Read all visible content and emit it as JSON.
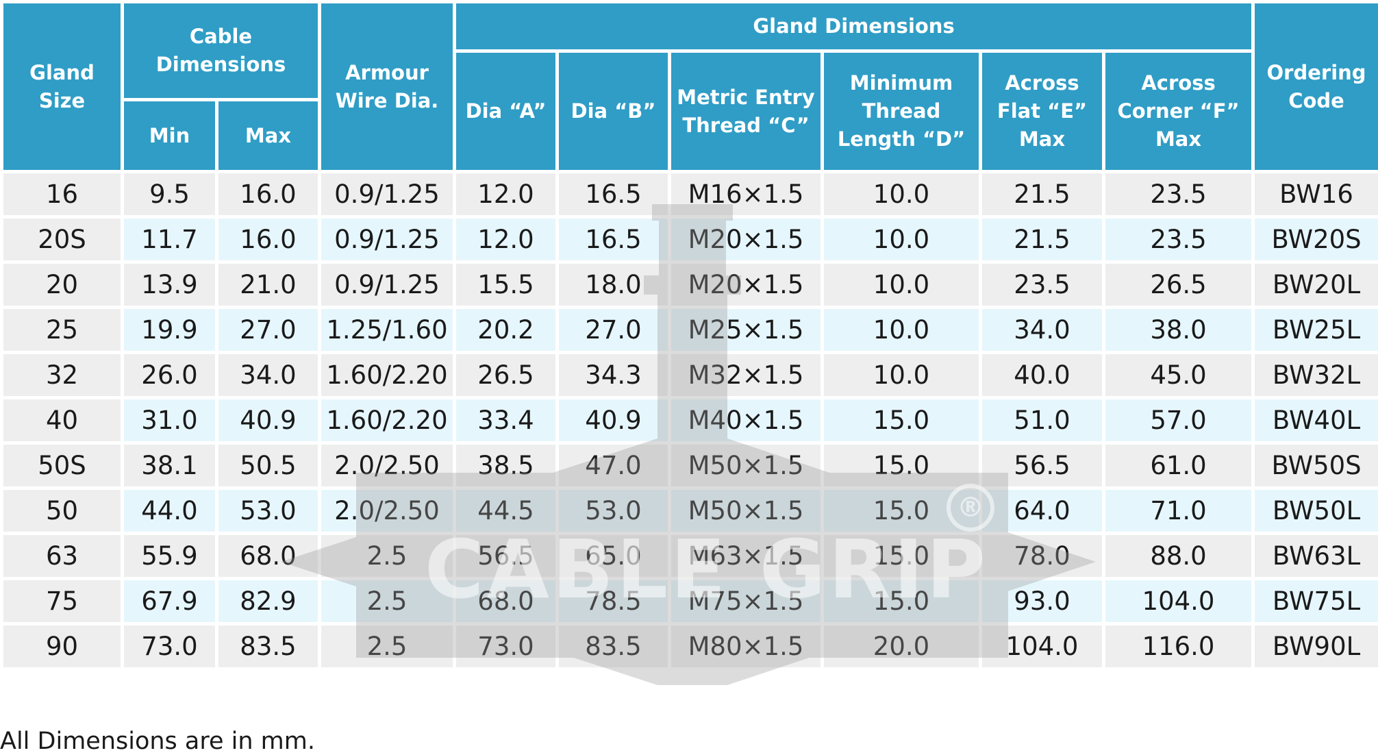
{
  "headers": {
    "gland_size": "Gland Size",
    "cable_dimensions": "Cable Dimensions",
    "min": "Min",
    "max": "Max",
    "armour_wire_dia": "Armour Wire Dia.",
    "gland_dimensions": "Gland Dimensions",
    "dia_a": "Dia “A”",
    "dia_b": "Dia “B”",
    "metric_entry_thread": "Metric Entry Thread “C”",
    "min_thread_length": "Minimum Thread Length “D”",
    "across_flat": "Across Flat “E” Max",
    "across_corner": "Across Corner “F” Max",
    "ordering_code": "Ordering Code"
  },
  "rows": [
    [
      "16",
      "9.5",
      "16.0",
      "0.9/1.25",
      "12.0",
      "16.5",
      "M16×1.5",
      "10.0",
      "21.5",
      "23.5",
      "BW16"
    ],
    [
      "20S",
      "11.7",
      "16.0",
      "0.9/1.25",
      "12.0",
      "16.5",
      "M20×1.5",
      "10.0",
      "21.5",
      "23.5",
      "BW20S"
    ],
    [
      "20",
      "13.9",
      "21.0",
      "0.9/1.25",
      "15.5",
      "18.0",
      "M20×1.5",
      "10.0",
      "23.5",
      "26.5",
      "BW20L"
    ],
    [
      "25",
      "19.9",
      "27.0",
      "1.25/1.60",
      "20.2",
      "27.0",
      "M25×1.5",
      "10.0",
      "34.0",
      "38.0",
      "BW25L"
    ],
    [
      "32",
      "26.0",
      "34.0",
      "1.60/2.20",
      "26.5",
      "34.3",
      "M32×1.5",
      "10.0",
      "40.0",
      "45.0",
      "BW32L"
    ],
    [
      "40",
      "31.0",
      "40.9",
      "1.60/2.20",
      "33.4",
      "40.9",
      "M40×1.5",
      "15.0",
      "51.0",
      "57.0",
      "BW40L"
    ],
    [
      "50S",
      "38.1",
      "50.5",
      "2.0/2.50",
      "38.5",
      "47.0",
      "M50×1.5",
      "15.0",
      "56.5",
      "61.0",
      "BW50S"
    ],
    [
      "50",
      "44.0",
      "53.0",
      "2.0/2.50",
      "44.5",
      "53.0",
      "M50×1.5",
      "15.0",
      "64.0",
      "71.0",
      "BW50L"
    ],
    [
      "63",
      "55.9",
      "68.0",
      "2.5",
      "56.5",
      "65.0",
      "M63×1.5",
      "15.0",
      "78.0",
      "88.0",
      "BW63L"
    ],
    [
      "75",
      "67.9",
      "82.9",
      "2.5",
      "68.0",
      "78.5",
      "M75×1.5",
      "15.0",
      "93.0",
      "104.0",
      "BW75L"
    ],
    [
      "90",
      "73.0",
      "83.5",
      "2.5",
      "73.0",
      "83.5",
      "M80×1.5",
      "20.0",
      "104.0",
      "116.0",
      "BW90L"
    ]
  ],
  "watermark": {
    "text": "CABLE GRIP",
    "registered_mark": "®"
  },
  "footnote": "All Dimensions are in mm.",
  "colors": {
    "header_bg": "#2f9dc6",
    "row_odd": "#eeeeee",
    "row_even": "#e6f6fd",
    "watermark": "#9a9a9a"
  }
}
